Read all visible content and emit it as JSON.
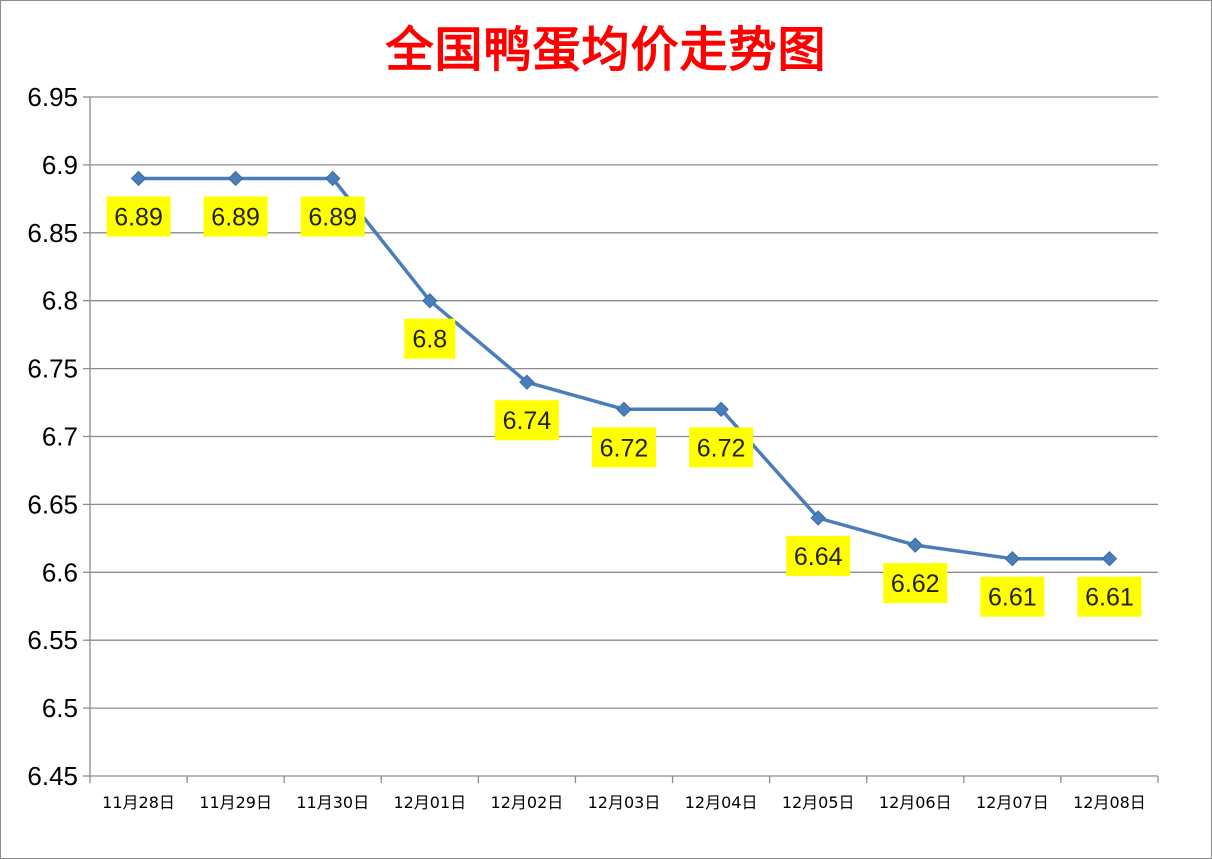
{
  "chart_data": {
    "type": "line",
    "title": "全国鸭蛋均价走势图",
    "xlabel": "",
    "ylabel": "",
    "categories": [
      "11月28日",
      "11月29日",
      "11月30日",
      "12月01日",
      "12月02日",
      "12月03日",
      "12月04日",
      "12月05日",
      "12月06日",
      "12月07日",
      "12月08日"
    ],
    "series": [
      {
        "name": "",
        "values": [
          6.89,
          6.89,
          6.89,
          6.8,
          6.74,
          6.72,
          6.72,
          6.64,
          6.62,
          6.61,
          6.61
        ]
      }
    ],
    "data_labels": [
      "6.89",
      "6.89",
      "6.89",
      "6.8",
      "6.74",
      "6.72",
      "6.72",
      "6.64",
      "6.62",
      "6.61",
      "6.61"
    ],
    "ylim": [
      6.45,
      6.95
    ],
    "yticks": [
      "6.45",
      "6.5",
      "6.55",
      "6.6",
      "6.65",
      "6.7",
      "6.75",
      "6.8",
      "6.85",
      "6.9",
      "6.95"
    ],
    "grid": true,
    "legend": "none",
    "colors": {
      "line": "#4a7ebb",
      "marker": "#4a7ebb",
      "label_bg": "#ffff00",
      "title": "#ff0000",
      "grid": "#8c8c8c"
    }
  }
}
